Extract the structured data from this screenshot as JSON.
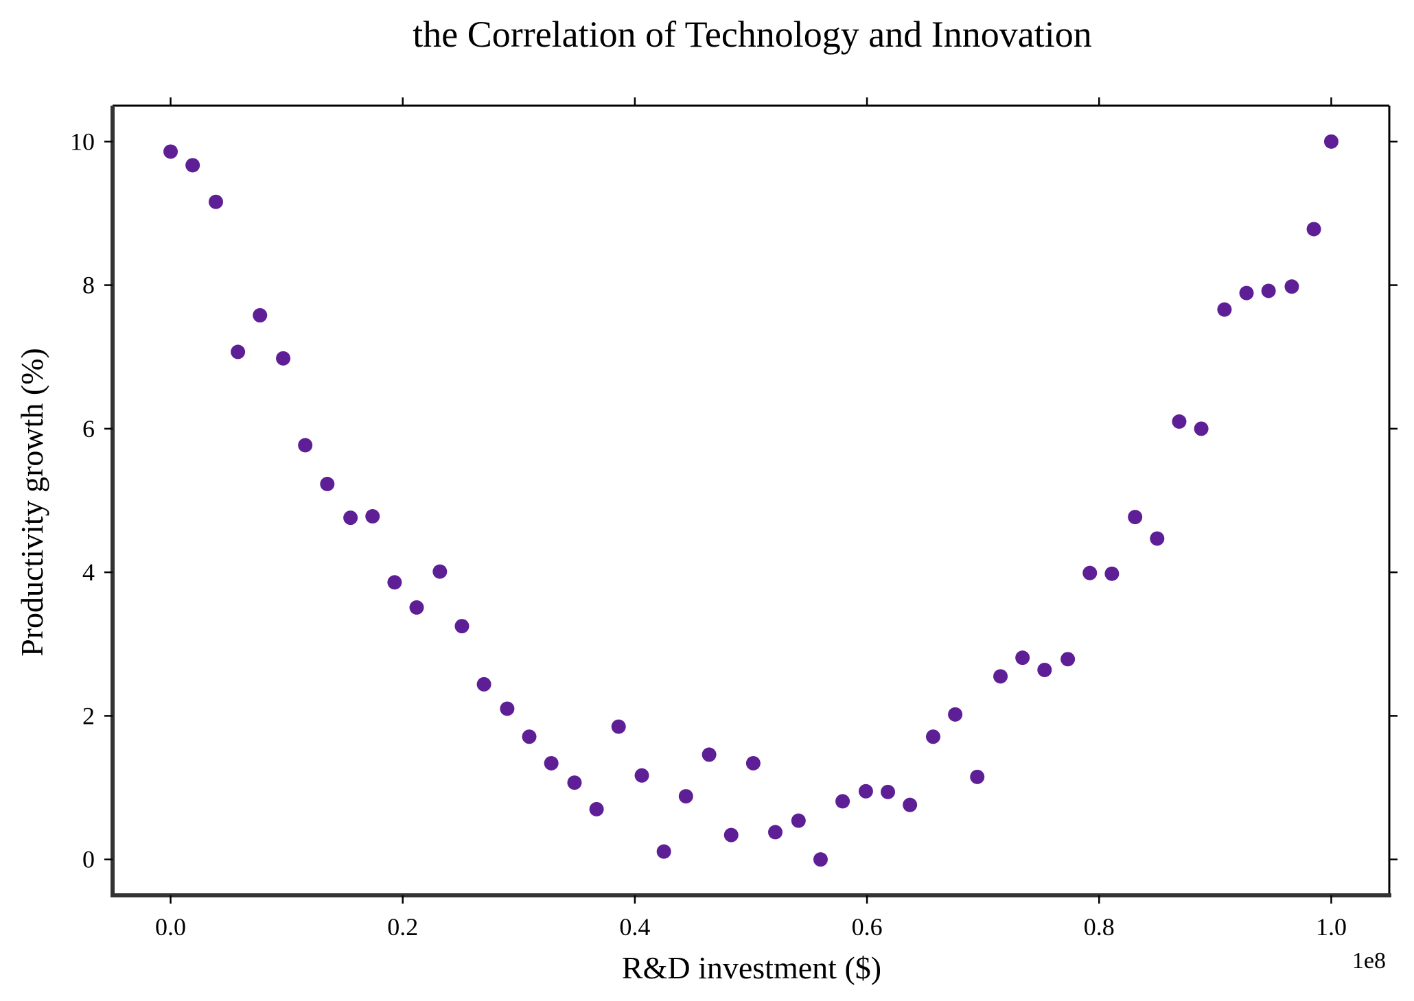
{
  "chart_data": {
    "type": "scatter",
    "title": "the Correlation of Technology and Innovation",
    "xlabel": "R&D investment ($)",
    "ylabel": "Productivity growth (%)",
    "x_offset_label": "1e8",
    "xlim": [
      -0.05,
      1.05
    ],
    "ylim": [
      -0.5,
      10.5
    ],
    "x_ticks": [
      0.0,
      0.2,
      0.4,
      0.6,
      0.8,
      1.0
    ],
    "x_tick_labels": [
      "0.0",
      "0.2",
      "0.4",
      "0.6",
      "0.8",
      "1.0"
    ],
    "y_ticks": [
      0,
      2,
      4,
      6,
      8,
      10
    ],
    "y_tick_labels": [
      "0",
      "2",
      "4",
      "6",
      "8",
      "10"
    ],
    "grid": false,
    "marker_color": "#5e1f96",
    "series": [
      {
        "x": [
          0.0,
          0.019,
          0.039,
          0.058,
          0.077,
          0.097,
          0.116,
          0.135,
          0.155,
          0.174,
          0.193,
          0.212,
          0.232,
          0.251,
          0.27,
          0.29,
          0.309,
          0.328,
          0.348,
          0.367,
          0.386,
          0.406,
          0.425,
          0.444,
          0.464,
          0.483,
          0.502,
          0.521,
          0.541,
          0.56,
          0.579,
          0.599,
          0.618,
          0.637,
          0.657,
          0.676,
          0.695,
          0.715,
          0.734,
          0.753,
          0.773,
          0.792,
          0.811,
          0.831,
          0.85,
          0.869,
          0.888,
          0.908,
          0.927,
          0.946,
          0.966,
          0.985,
          1.0
        ],
        "y": [
          9.86,
          9.67,
          9.16,
          7.07,
          7.58,
          6.98,
          5.77,
          5.23,
          4.76,
          4.78,
          3.86,
          3.51,
          4.01,
          3.25,
          2.44,
          2.1,
          1.71,
          1.34,
          1.07,
          0.7,
          1.85,
          1.17,
          0.11,
          0.88,
          1.46,
          0.34,
          1.34,
          0.38,
          0.54,
          0.0,
          0.81,
          0.95,
          0.94,
          0.76,
          1.71,
          2.02,
          1.15,
          2.55,
          2.81,
          2.64,
          2.79,
          3.99,
          3.98,
          4.77,
          4.47,
          6.1,
          6.0,
          7.66,
          7.89,
          7.92,
          7.98,
          8.78,
          10.0
        ]
      }
    ]
  }
}
